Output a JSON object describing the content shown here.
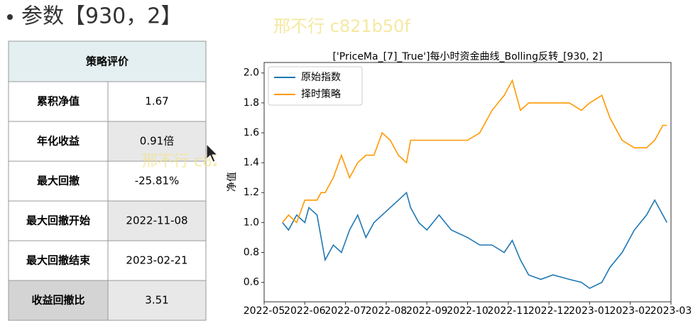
{
  "header": {
    "title": "参数【930，2】"
  },
  "watermark": "邢不行 c821b50f",
  "table": {
    "title": "策略评价",
    "rows": [
      [
        "累积净值",
        "1.67"
      ],
      [
        "年化收益",
        "0.91倍"
      ],
      [
        "最大回撤",
        "-25.81%"
      ],
      [
        "最大回撤开始",
        "2022-11-08"
      ],
      [
        "最大回撤结束",
        "2023-02-21"
      ],
      [
        "收益回撤比",
        "3.51"
      ]
    ]
  },
  "chart_data": {
    "type": "line",
    "title": "['PriceMa_[7]_True']每小时资金曲线_Bolling反转_[930, 2]",
    "y_label": "净值",
    "x": [
      0.45,
      0.6,
      0.8,
      1.0,
      1.1,
      1.3,
      1.4,
      1.5,
      1.7,
      1.9,
      2.1,
      2.3,
      2.5,
      2.7,
      2.9,
      3.1,
      3.3,
      3.5,
      3.6,
      3.8,
      4.0,
      4.3,
      4.6,
      5.0,
      5.3,
      5.6,
      5.9,
      6.1,
      6.3,
      6.5,
      6.8,
      7.1,
      7.5,
      7.8,
      8.0,
      8.3,
      8.5,
      8.8,
      9.1,
      9.4,
      9.6,
      9.8,
      9.9
    ],
    "series": [
      {
        "name": "原始指数",
        "color": "#1f77b4",
        "values": [
          1.0,
          0.95,
          1.05,
          1.0,
          1.1,
          1.05,
          0.9,
          0.75,
          0.85,
          0.8,
          0.95,
          1.05,
          0.9,
          1.0,
          1.05,
          1.1,
          1.15,
          1.2,
          1.1,
          1.0,
          0.95,
          1.05,
          0.95,
          0.9,
          0.85,
          0.85,
          0.8,
          0.88,
          0.75,
          0.65,
          0.62,
          0.65,
          0.62,
          0.6,
          0.56,
          0.6,
          0.7,
          0.8,
          0.95,
          1.05,
          1.15,
          1.05,
          1.0
        ]
      },
      {
        "name": "择时策略",
        "color": "#ff9900",
        "values": [
          1.0,
          1.05,
          1.0,
          1.15,
          1.15,
          1.15,
          1.2,
          1.2,
          1.3,
          1.45,
          1.3,
          1.4,
          1.45,
          1.45,
          1.6,
          1.55,
          1.45,
          1.4,
          1.55,
          1.55,
          1.55,
          1.55,
          1.55,
          1.55,
          1.6,
          1.75,
          1.85,
          1.95,
          1.75,
          1.8,
          1.8,
          1.8,
          1.8,
          1.75,
          1.8,
          1.85,
          1.7,
          1.55,
          1.5,
          1.5,
          1.55,
          1.65,
          1.65
        ]
      }
    ],
    "xlim": [
      0,
      10
    ],
    "xticks": [
      {
        "value": 0,
        "label": "2022-05"
      },
      {
        "value": 1,
        "label": "2022-06"
      },
      {
        "value": 2,
        "label": "2022-07"
      },
      {
        "value": 3,
        "label": "2022-08"
      },
      {
        "value": 4,
        "label": "2022-09"
      },
      {
        "value": 5,
        "label": "2022-10"
      },
      {
        "value": 6,
        "label": "2022-11"
      },
      {
        "value": 7,
        "label": "2022-12"
      },
      {
        "value": 8,
        "label": "2023-01"
      },
      {
        "value": 9,
        "label": "2023-02"
      },
      {
        "value": 10,
        "label": "2023-03"
      }
    ],
    "ylim": [
      0.47,
      2.07
    ],
    "yticks": [
      {
        "value": 0.6,
        "label": "0.6"
      },
      {
        "value": 0.8,
        "label": "0.8"
      },
      {
        "value": 1.0,
        "label": "1.0"
      },
      {
        "value": 1.2,
        "label": "1.2"
      },
      {
        "value": 1.4,
        "label": "1.4"
      },
      {
        "value": 1.6,
        "label": "1.6"
      },
      {
        "value": 1.8,
        "label": "1.8"
      },
      {
        "value": 2.0,
        "label": "2.0"
      }
    ],
    "legend": "upper-left"
  }
}
